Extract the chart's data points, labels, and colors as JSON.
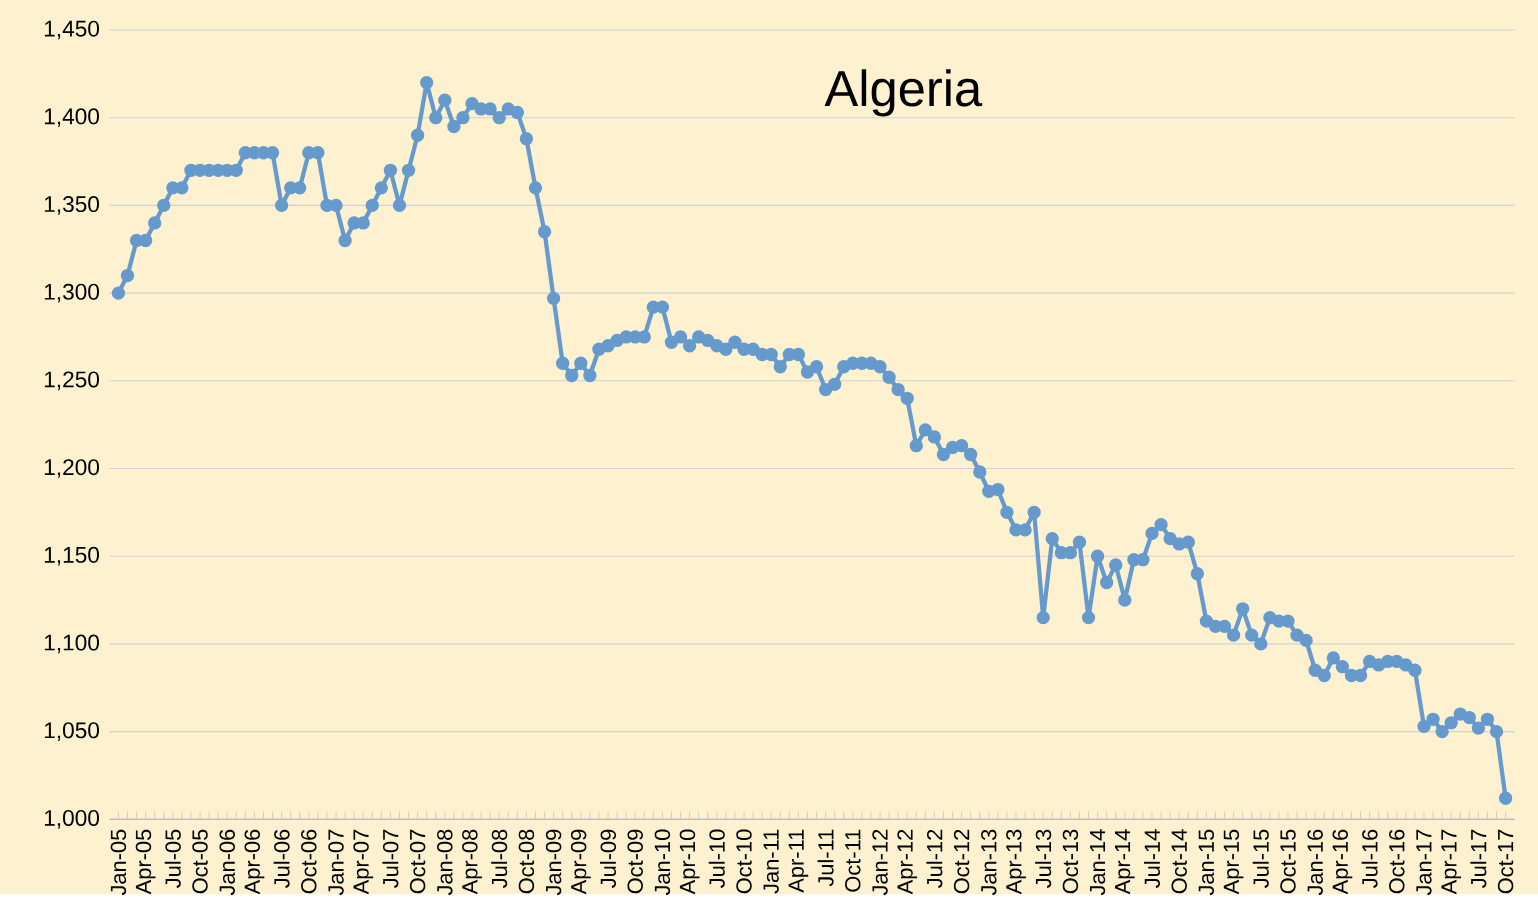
{
  "chart_data": {
    "type": "line",
    "title": "Algeria",
    "categories": [
      "Jan-05",
      null,
      null,
      "Apr-05",
      null,
      null,
      "Jul-05",
      null,
      null,
      "Oct-05",
      null,
      null,
      "Jan-06",
      null,
      null,
      "Apr-06",
      null,
      null,
      "Jul-06",
      null,
      null,
      "Oct-06",
      null,
      null,
      "Jan-07",
      null,
      null,
      "Apr-07",
      null,
      null,
      "Jul-07",
      null,
      null,
      "Oct-07",
      null,
      null,
      "Jan-08",
      null,
      null,
      "Apr-08",
      null,
      null,
      "Jul-08",
      null,
      null,
      "Oct-08",
      null,
      null,
      "Jan-09",
      null,
      null,
      "Apr-09",
      null,
      null,
      "Jul-09",
      null,
      null,
      "Oct-09",
      null,
      null,
      "Jan-10",
      null,
      null,
      "Apr-10",
      null,
      null,
      "Jul-10",
      null,
      null,
      "Oct-10",
      null,
      null,
      "Jan-11",
      null,
      null,
      "Apr-11",
      null,
      null,
      "Jul-11",
      null,
      null,
      "Oct-11",
      null,
      null,
      "Jan-12",
      null,
      null,
      "Apr-12",
      null,
      null,
      "Jul-12",
      null,
      null,
      "Oct-12",
      null,
      null,
      "Jan-13",
      null,
      null,
      "Apr-13",
      null,
      null,
      "Jul-13",
      null,
      null,
      "Oct-13",
      null,
      null,
      "Jan-14",
      null,
      null,
      "Apr-14",
      null,
      null,
      "Jul-14",
      null,
      null,
      "Oct-14",
      null,
      null,
      "Jan-15",
      null,
      null,
      "Apr-15",
      null,
      null,
      "Jul-15",
      null,
      null,
      "Oct-15",
      null,
      null,
      "Jan-16",
      null,
      null,
      "Apr-16",
      null,
      null,
      "Jul-16",
      null,
      null,
      "Oct-16",
      null,
      null,
      "Jan-17",
      null,
      null,
      "Apr-17",
      null,
      null,
      "Jul-17",
      null,
      null,
      "Oct-17"
    ],
    "series": [
      {
        "color": "#6699cc",
        "values": [
          1300,
          1310,
          1330,
          1330,
          1340,
          1350,
          1360,
          1360,
          1370,
          1370,
          1370,
          1370,
          1370,
          1370,
          1380,
          1380,
          1380,
          1380,
          1350,
          1360,
          1360,
          1380,
          1380,
          1350,
          1350,
          1330,
          1340,
          1340,
          1350,
          1360,
          1370,
          1350,
          1370,
          1390,
          1420,
          1400,
          1410,
          1395,
          1400,
          1408,
          1405,
          1405,
          1400,
          1405,
          1403,
          1388,
          1360,
          1335,
          1297,
          1260,
          1253,
          1260,
          1253,
          1268,
          1270,
          1273,
          1275,
          1275,
          1275,
          1292,
          1292,
          1272,
          1275,
          1270,
          1275,
          1273,
          1270,
          1268,
          1272,
          1268,
          1268,
          1265,
          1265,
          1258,
          1265,
          1265,
          1255,
          1258,
          1245,
          1248,
          1258,
          1260,
          1260,
          1260,
          1258,
          1252,
          1245,
          1240,
          1213,
          1222,
          1218,
          1208,
          1212,
          1213,
          1208,
          1198,
          1187,
          1188,
          1175,
          1165,
          1165,
          1175,
          1115,
          1160,
          1152,
          1152,
          1158,
          1115,
          1150,
          1135,
          1145,
          1125,
          1148,
          1148,
          1163,
          1168,
          1160,
          1157,
          1158,
          1140,
          1113,
          1110,
          1110,
          1105,
          1120,
          1105,
          1100,
          1115,
          1113,
          1113,
          1105,
          1102,
          1085,
          1082,
          1092,
          1087,
          1082,
          1082,
          1090,
          1088,
          1090,
          1090,
          1088,
          1085,
          1053,
          1057,
          1050,
          1055,
          1060,
          1058,
          1052,
          1057,
          1050,
          1012
        ]
      }
    ],
    "ylim": [
      1000,
      1450
    ],
    "yticks": [
      {
        "value": 1000,
        "label": "1,000"
      },
      {
        "value": 1050,
        "label": "1,050"
      },
      {
        "value": 1100,
        "label": "1,100"
      },
      {
        "value": 1150,
        "label": "1,150"
      },
      {
        "value": 1200,
        "label": "1,200"
      },
      {
        "value": 1250,
        "label": "1,250"
      },
      {
        "value": 1300,
        "label": "1,300"
      },
      {
        "value": 1350,
        "label": "1,350"
      },
      {
        "value": 1400,
        "label": "1,400"
      },
      {
        "value": 1450,
        "label": "1,450"
      }
    ],
    "grid": "y",
    "marker": "circle",
    "line_style": "solid"
  }
}
